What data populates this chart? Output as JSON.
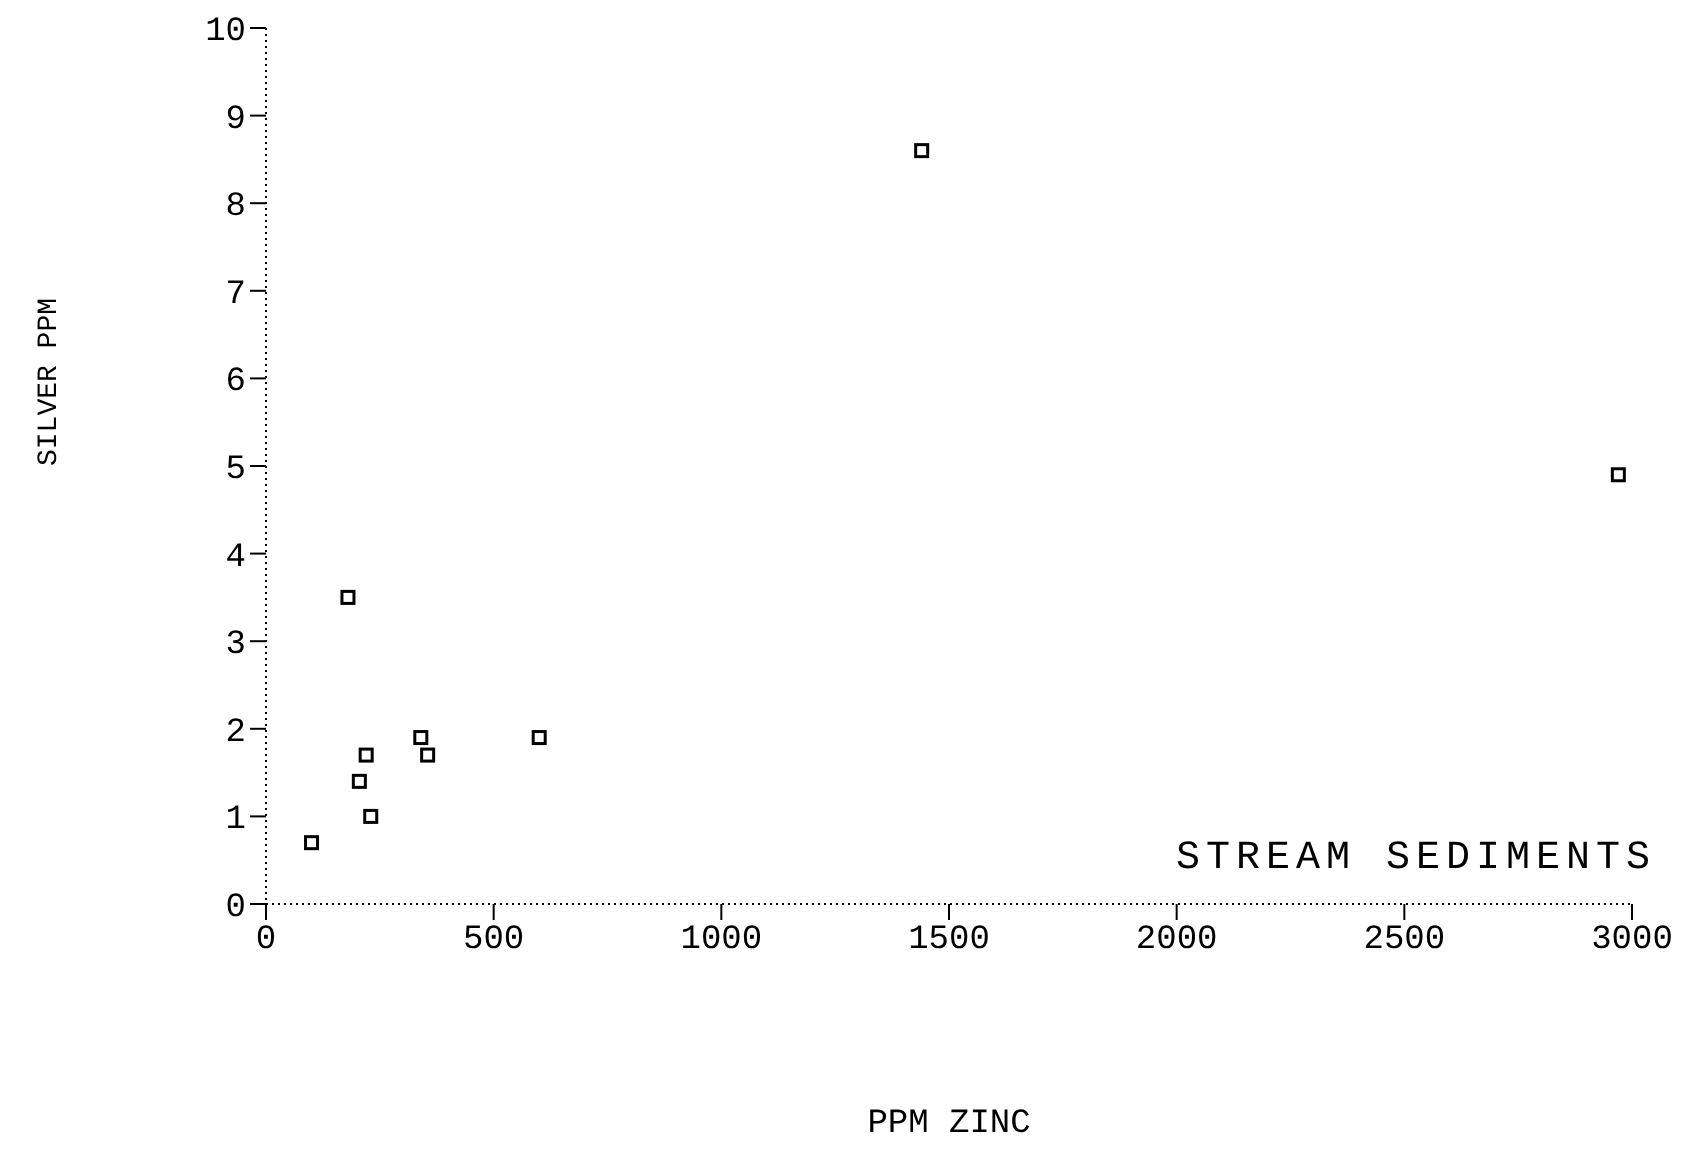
{
  "chart_data": {
    "type": "scatter",
    "xlabel": "PPM ZINC",
    "ylabel": "SILVER PPM",
    "annotations": [
      "STREAM SEDIMENTS"
    ],
    "series": [
      {
        "color": "#000000",
        "x": [
          100,
          180,
          205,
          220,
          230,
          340,
          355,
          600,
          1440,
          2970
        ],
        "values": [
          0.7,
          3.5,
          1.4,
          1.7,
          1.0,
          1.9,
          1.7,
          1.9,
          8.6,
          4.9
        ]
      }
    ],
    "xlim": [
      0,
      3000
    ],
    "xticks": [
      0,
      500,
      1000,
      1500,
      2000,
      2500,
      3000
    ],
    "ylim": [
      0,
      10
    ],
    "yticks": [
      0,
      1,
      2,
      3,
      4,
      5,
      6,
      7,
      8,
      9,
      10
    ],
    "marker": "square",
    "grid": false,
    "legend": false
  }
}
